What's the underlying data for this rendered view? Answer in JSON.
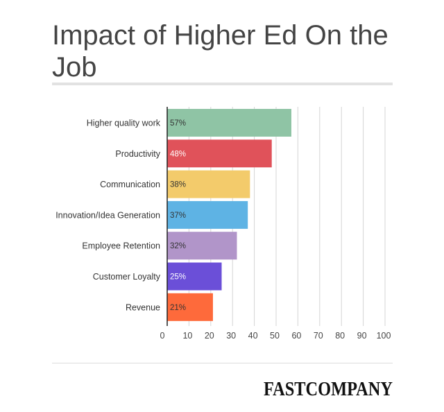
{
  "title": "Impact of Higher Ed On the Job",
  "brand": "FASTCOMPANY",
  "chart_data": {
    "type": "bar",
    "orientation": "horizontal",
    "title": "Impact of Higher Ed On the Job",
    "categories": [
      "Higher quality work",
      "Productivity",
      "Communication",
      "Innovation/Idea Generation",
      "Employee Retention",
      "Customer Loyalty",
      "Revenue"
    ],
    "values": [
      57,
      48,
      38,
      37,
      32,
      25,
      21
    ],
    "value_labels": [
      "57%",
      "48%",
      "38%",
      "37%",
      "32%",
      "25%",
      "21%"
    ],
    "colors": [
      "#8fc4a5",
      "#e0525a",
      "#f3cb6b",
      "#5eb3e4",
      "#b195c9",
      "#6b4fd8",
      "#fe6a3b"
    ],
    "label_colors": [
      "#333333",
      "#ffffff",
      "#333333",
      "#333333",
      "#333333",
      "#ffffff",
      "#333333"
    ],
    "xlim": [
      0,
      100
    ],
    "xticks": [
      0,
      10,
      20,
      30,
      40,
      50,
      60,
      70,
      80,
      90,
      100
    ],
    "grid": true
  }
}
